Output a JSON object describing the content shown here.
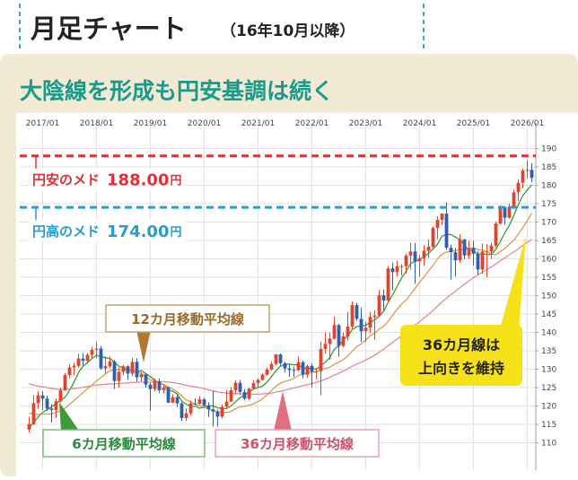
{
  "header": {
    "title": "月足チャート",
    "period": "（16年10月以降）"
  },
  "subtitle": "大陰線を形成も円安基調は続く",
  "chart_data": {
    "type": "candlestick",
    "categories": [
      null,
      null,
      null,
      "2017/01",
      null,
      null,
      null,
      null,
      null,
      null,
      null,
      null,
      null,
      null,
      null,
      "2018/01",
      null,
      null,
      null,
      null,
      null,
      null,
      null,
      null,
      null,
      null,
      null,
      "2019/01",
      null,
      null,
      null,
      null,
      null,
      null,
      null,
      null,
      null,
      null,
      null,
      "2020/01",
      null,
      null,
      null,
      null,
      null,
      null,
      null,
      null,
      null,
      null,
      null,
      "2021/01",
      null,
      null,
      null,
      null,
      null,
      null,
      null,
      null,
      null,
      null,
      null,
      "2022/01",
      null,
      null,
      null,
      null,
      null,
      null,
      null,
      null,
      null,
      null,
      null,
      "2023/01",
      null,
      null,
      null,
      null,
      null,
      null,
      null,
      null,
      null,
      null,
      null,
      "2024/01",
      null,
      null,
      null,
      null,
      null,
      null,
      null,
      null,
      null,
      null,
      null,
      "2025/01",
      null,
      null,
      null,
      null,
      null,
      null,
      null,
      null,
      null,
      null,
      null,
      "2026/01",
      null
    ],
    "open": [
      113.6,
      115.1,
      120.8,
      122.9,
      122.0,
      119.3,
      118.9,
      121.3,
      124.3,
      128.4,
      130.5,
      130.9,
      132.9,
      132.3,
      133.9,
      135.3,
      135.6,
      130.2,
      130.8,
      132.1,
      126.8,
      129.3,
      130.8,
      128.8,
      132.0,
      127.8,
      128.6,
      125.8,
      124.6,
      126.7,
      124.3,
      125.0,
      120.9,
      122.4,
      120.7,
      116.7,
      118.0,
      120.7,
      120.6,
      121.8,
      120.1,
      119.1,
      118.5,
      117.1,
      119.8,
      121.2,
      124.3,
      126.3,
      123.8,
      122.0,
      124.7,
      126.2,
      127.1,
      128.5,
      129.9,
      131.4,
      134.0,
      131.6,
      130.2,
      129.8,
      129.7,
      131.9,
      128.5,
      130.9,
      129.3,
      129.5,
      135.5,
      136.9,
      138.3,
      142.0,
      136.3,
      138.9,
      141.6,
      147.4,
      143.7,
      140.3,
      141.3,
      144.2,
      144.6,
      150.1,
      148.7,
      157.4,
      156.4,
      158.0,
      158.0,
      160.9,
      162.0,
      159.3,
      160.2,
      162.2,
      163.3,
      168.4,
      170.6,
      172.3,
      163.0,
      161.8,
      159.6,
      165.3,
      160.9,
      163.0,
      161.4,
      157.1,
      162.0,
      162.0,
      163.6,
      169.6,
      174.1,
      171.2,
      174.2,
      178.1,
      180.7,
      184.0,
      184.2
    ],
    "high": [
      117.0,
      122.9,
      124.1,
      124.0,
      122.8,
      120.5,
      122.0,
      125.0,
      129.0,
      131.4,
      131.7,
      134.2,
      134.4,
      134.5,
      136.0,
      137.5,
      136.3,
      133.5,
      133.5,
      132.5,
      130.5,
      131.2,
      131.0,
      133.1,
      133.0,
      129.2,
      129.0,
      126.3,
      127.5,
      127.5,
      125.9,
      125.3,
      123.2,
      123.3,
      121.0,
      119.3,
      121.5,
      122.0,
      122.6,
      122.2,
      121.0,
      124.1,
      119.0,
      120.5,
      124.4,
      125.1,
      127.0,
      127.1,
      124.6,
      125.0,
      127.0,
      127.5,
      128.9,
      130.5,
      132.0,
      134.1,
      134.3,
      132.0,
      131.2,
      130.7,
      133.5,
      132.3,
      131.2,
      131.6,
      130.3,
      137.5,
      140.0,
      140.0,
      144.3,
      142.3,
      139.9,
      145.6,
      148.4,
      148.0,
      146.7,
      142.9,
      145.6,
      146.0,
      151.6,
      151.6,
      158.0,
      159.0,
      159.5,
      158.6,
      161.5,
      164.3,
      164.3,
      161.0,
      163.7,
      165.3,
      168.8,
      171.6,
      172.4,
      175.4,
      163.9,
      163.0,
      166.7,
      165.4,
      164.9,
      164.9,
      162.1,
      164.2,
      164.0,
      164.4,
      170.1,
      174.5,
      174.3,
      175.0,
      178.8,
      181.6,
      184.5,
      186.9,
      186.0
    ],
    "low": [
      112.7,
      114.8,
      119.2,
      118.9,
      118.6,
      115.5,
      116.7,
      120.9,
      124.1,
      127.6,
      128.3,
      130.4,
      131.1,
      131.5,
      133.0,
      133.0,
      129.9,
      128.9,
      130.3,
      124.6,
      124.9,
      128.4,
      127.1,
      128.2,
      126.6,
      126.7,
      125.0,
      118.7,
      124.0,
      123.6,
      123.4,
      120.8,
      120.8,
      119.7,
      115.9,
      115.9,
      117.4,
      120.2,
      120.4,
      119.7,
      117.0,
      114.4,
      114.4,
      116.6,
      119.4,
      121.0,
      123.4,
      123.0,
      121.6,
      121.6,
      124.6,
      125.1,
      126.8,
      128.2,
      129.7,
      131.0,
      131.0,
      129.1,
      127.9,
      127.9,
      129.5,
      127.5,
      127.7,
      125.1,
      127.3,
      122.9,
      134.3,
      132.6,
      138.0,
      133.4,
      136.0,
      137.8,
      141.0,
      143.1,
      137.4,
      137.4,
      139.8,
      138.0,
      144.2,
      145.9,
      148.2,
      151.4,
      155.2,
      155.4,
      156.0,
      157.1,
      153.2,
      155.2,
      158.1,
      160.2,
      162.5,
      165.3,
      169.2,
      162.4,
      154.4,
      155.2,
      159.0,
      159.9,
      160.0,
      158.1,
      155.7,
      155.9,
      155.0,
      159.9,
      163.1,
      169.3,
      169.2,
      170.9,
      174.0,
      175.7,
      179.2,
      181.9,
      180.8
    ],
    "close": [
      115.1,
      120.8,
      122.9,
      122.0,
      119.3,
      118.9,
      121.3,
      124.3,
      128.4,
      130.5,
      130.9,
      132.9,
      132.3,
      133.9,
      135.3,
      135.6,
      130.2,
      130.8,
      132.1,
      126.8,
      129.3,
      130.8,
      128.8,
      132.0,
      127.8,
      128.6,
      125.8,
      124.6,
      126.7,
      124.3,
      125.0,
      120.9,
      122.4,
      120.7,
      116.7,
      118.0,
      120.7,
      120.6,
      121.8,
      120.1,
      119.1,
      118.5,
      117.1,
      119.8,
      121.2,
      124.3,
      126.3,
      123.8,
      122.0,
      124.7,
      126.2,
      127.1,
      128.5,
      129.9,
      131.4,
      134.0,
      131.6,
      130.2,
      129.8,
      129.7,
      131.9,
      128.5,
      130.9,
      129.3,
      129.5,
      135.5,
      136.9,
      138.3,
      142.0,
      136.3,
      138.9,
      141.6,
      147.4,
      143.7,
      140.3,
      141.3,
      144.2,
      144.6,
      150.1,
      148.7,
      157.4,
      156.4,
      158.0,
      158.0,
      160.9,
      162.0,
      159.3,
      160.2,
      162.2,
      163.3,
      168.4,
      170.6,
      172.3,
      163.0,
      161.8,
      159.6,
      165.3,
      160.9,
      163.0,
      161.4,
      157.1,
      162.0,
      162.0,
      163.6,
      169.6,
      174.1,
      171.2,
      174.2,
      178.1,
      180.7,
      184.0,
      184.2,
      182.0
    ],
    "up_color": "#e0452b",
    "down_color": "#2f5fae",
    "series": [
      {
        "name": "6カ月移動平均線",
        "color": "#3f9a3a",
        "values": [
          114.0,
          115.5,
          117.0,
          118.3,
          119.0,
          119.8,
          120.7,
          121.5,
          122.4,
          124.2,
          126.5,
          129.1,
          130.8,
          131.8,
          132.9,
          133.8,
          133.4,
          133.1,
          132.9,
          131.9,
          130.8,
          130.3,
          129.8,
          129.7,
          129.3,
          129.6,
          128.8,
          128.0,
          127.0,
          126.3,
          125.8,
          124.4,
          124.0,
          123.3,
          121.3,
          120.5,
          119.9,
          119.9,
          119.4,
          119.7,
          120.1,
          120.0,
          119.5,
          119.3,
          119.3,
          120.0,
          121.2,
          122.3,
          123.0,
          123.8,
          124.6,
          125.0,
          125.4,
          126.5,
          128.0,
          129.6,
          130.8,
          131.3,
          131.4,
          131.2,
          131.2,
          130.3,
          130.2,
          130.2,
          130.0,
          130.9,
          131.9,
          133.2,
          135.4,
          136.4,
          138.0,
          139.0,
          140.8,
          141.6,
          141.7,
          141.9,
          142.8,
          143.4,
          144.4,
          145.7,
          148.2,
          150.2,
          152.5,
          154.8,
          156.6,
          158.8,
          159.3,
          159.8,
          160.6,
          161.5,
          162.7,
          164.0,
          166.2,
          166.6,
          166.6,
          165.9,
          165.2,
          163.8,
          162.3,
          162.3,
          161.2,
          161.5,
          161.2,
          161.2,
          162.6,
          164.7,
          167.1,
          169.1,
          171.8,
          174.7,
          177.2,
          178.7,
          180.1
        ]
      },
      {
        "name": "12カ月移動平均線",
        "color": "#d99a4a",
        "values": [
          118.0,
          117.8,
          117.7,
          117.8,
          117.8,
          117.9,
          118.2,
          118.7,
          119.4,
          120.4,
          121.5,
          122.5,
          123.6,
          124.7,
          125.7,
          126.8,
          127.7,
          128.7,
          129.6,
          129.8,
          129.9,
          129.9,
          129.7,
          129.6,
          129.2,
          128.8,
          128.0,
          127.1,
          126.8,
          126.3,
          125.7,
          125.2,
          124.6,
          123.8,
          122.8,
          121.6,
          121.1,
          120.4,
          120.1,
          119.7,
          119.1,
          118.6,
          118.4,
          118.3,
          118.2,
          118.5,
          119.3,
          119.8,
          119.9,
          120.2,
          120.6,
          121.2,
          122.0,
          123.0,
          124.2,
          125.4,
          126.2,
          126.7,
          127.0,
          127.5,
          128.3,
          128.6,
          129.0,
          129.2,
          129.3,
          129.7,
          130.2,
          130.5,
          131.4,
          131.9,
          132.6,
          133.6,
          134.9,
          136.1,
          136.9,
          137.9,
          139.1,
          139.8,
          140.9,
          141.7,
          143.0,
          144.7,
          146.3,
          147.7,
          148.8,
          150.4,
          152.0,
          153.6,
          155.1,
          156.7,
          158.2,
          160.0,
          161.3,
          161.8,
          162.1,
          162.2,
          162.6,
          162.5,
          162.8,
          162.9,
          162.5,
          162.4,
          161.9,
          161.3,
          161.1,
          162.0,
          162.8,
          164.0,
          165.1,
          166.7,
          168.5,
          170.4,
          172.5
        ]
      },
      {
        "name": "36カ月移動平均線",
        "color": "#e88a8f",
        "values": [
          126.0,
          125.7,
          125.4,
          125.2,
          125.0,
          124.8,
          124.6,
          124.5,
          124.5,
          124.6,
          124.7,
          124.9,
          125.1,
          125.3,
          125.5,
          125.7,
          125.8,
          125.9,
          126.0,
          126.0,
          126.1,
          126.2,
          126.3,
          126.4,
          126.4,
          126.5,
          126.5,
          126.5,
          126.6,
          126.6,
          126.6,
          126.5,
          126.4,
          126.2,
          125.9,
          125.6,
          125.4,
          125.2,
          125.0,
          124.7,
          124.4,
          124.1,
          123.8,
          123.6,
          123.5,
          123.4,
          123.4,
          123.3,
          123.2,
          123.2,
          123.2,
          123.2,
          123.3,
          123.4,
          123.5,
          123.8,
          124.0,
          124.3,
          124.6,
          124.9,
          125.2,
          125.5,
          125.8,
          126.1,
          126.4,
          126.8,
          127.3,
          127.8,
          128.4,
          128.9,
          129.5,
          130.1,
          130.8,
          131.4,
          131.9,
          132.5,
          133.1,
          133.8,
          134.6,
          135.4,
          136.4,
          137.3,
          138.2,
          139.1,
          140.1,
          141.1,
          142.0,
          142.9,
          143.9,
          144.9,
          146.0,
          147.1,
          148.3,
          149.3,
          150.3,
          151.2,
          152.2,
          153.1,
          154.0,
          154.9,
          155.6,
          156.4,
          157.1,
          157.8,
          158.6,
          159.5,
          160.3,
          161.1,
          161.9,
          162.7,
          163.6,
          164.5,
          165.3
        ]
      }
    ],
    "ylim": [
      105,
      195
    ],
    "yticks": [
      110,
      115,
      120,
      125,
      130,
      135,
      140,
      145,
      150,
      155,
      160,
      165,
      170,
      175,
      180,
      185,
      190
    ],
    "grid": true,
    "reference_lines": [
      {
        "label": "円安のメド",
        "value": 188,
        "value_label": "188.00",
        "unit": "円",
        "color": "#e0303a"
      },
      {
        "label": "円高のメド",
        "value": 174,
        "value_label": "174.00",
        "unit": "円",
        "color": "#2a9bd0"
      }
    ],
    "annotations": {
      "ma12": "12カ月移動平均線",
      "ma6": "6カ月移動平均線",
      "ma36": "36カ月移動平均線",
      "note": [
        "36カ月線は",
        "上向きを維持"
      ]
    }
  }
}
